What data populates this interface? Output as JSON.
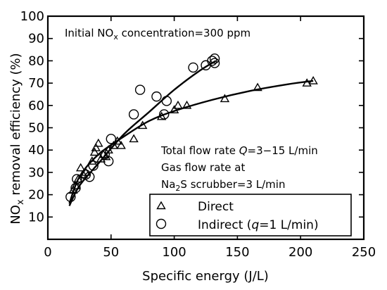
{
  "chart_data": {
    "type": "scatter",
    "title": "",
    "xlabel": "Specific energy (J/L)",
    "ylabel": {
      "pre": "NO",
      "sub": "x",
      "post": " removal efficiency (%)"
    },
    "xlim": [
      0,
      250
    ],
    "ylim": [
      0,
      100
    ],
    "xticks": [
      0,
      50,
      100,
      150,
      200,
      250
    ],
    "yticks": [
      10,
      20,
      30,
      40,
      50,
      60,
      70,
      80,
      90,
      100
    ],
    "xtick_labels": [
      "0",
      "50",
      "100",
      "150",
      "200",
      "250"
    ],
    "ytick_labels": [
      "10",
      "20",
      "30",
      "40",
      "50",
      "60",
      "70",
      "80",
      "90",
      "100"
    ],
    "grid": false,
    "annotations": {
      "initial": {
        "pre": "Initial NO",
        "sub": "x",
        "post": " concentration=300 ppm"
      },
      "flow_line1": {
        "pre": "Total flow rate ",
        "ital": "Q",
        "post": "=3−15 L/min"
      },
      "flow_line2": "Gas flow rate at",
      "flow_line3": {
        "pre": "Na",
        "sub": "2",
        "post": "S scrubber=3 L/min"
      }
    },
    "legend": {
      "placement": "lower-right",
      "direct": "Direct",
      "indirect": {
        "pre": "Indirect (",
        "ital": "q",
        "post": "=1 L/min)"
      }
    },
    "series": [
      {
        "name": "Direct",
        "marker": "triangle",
        "points": [
          [
            20,
            22
          ],
          [
            22,
            24
          ],
          [
            24,
            27
          ],
          [
            26,
            32
          ],
          [
            28,
            29
          ],
          [
            30,
            30
          ],
          [
            35,
            35
          ],
          [
            37,
            39
          ],
          [
            38,
            41
          ],
          [
            40,
            43
          ],
          [
            42,
            36
          ],
          [
            44,
            38
          ],
          [
            46,
            37
          ],
          [
            48,
            40
          ],
          [
            52,
            42
          ],
          [
            55,
            44
          ],
          [
            58,
            42
          ],
          [
            68,
            45
          ],
          [
            75,
            51
          ],
          [
            90,
            55
          ],
          [
            100,
            58
          ],
          [
            103,
            60
          ],
          [
            110,
            60
          ],
          [
            140,
            63
          ],
          [
            166,
            68
          ],
          [
            205,
            70
          ],
          [
            210,
            71
          ]
        ],
        "fit": [
          [
            17,
            16
          ],
          [
            25,
            28
          ],
          [
            40,
            38
          ],
          [
            60,
            46
          ],
          [
            80,
            53
          ],
          [
            100,
            57.5
          ],
          [
            130,
            62.5
          ],
          [
            160,
            66.5
          ],
          [
            190,
            69.5
          ],
          [
            210,
            71
          ]
        ]
      },
      {
        "name": "Indirect (q=1 L/min)",
        "marker": "circle",
        "points": [
          [
            18,
            19
          ],
          [
            22,
            23
          ],
          [
            23,
            27
          ],
          [
            30,
            29
          ],
          [
            33,
            28
          ],
          [
            36,
            33
          ],
          [
            45,
            38
          ],
          [
            48,
            35
          ],
          [
            50,
            45
          ],
          [
            68,
            56
          ],
          [
            73,
            67
          ],
          [
            86,
            64
          ],
          [
            92,
            56
          ],
          [
            94,
            62
          ],
          [
            115,
            77
          ],
          [
            125,
            78
          ],
          [
            130,
            80
          ],
          [
            132,
            81
          ],
          [
            132,
            79
          ]
        ],
        "fit": [
          [
            17,
            15
          ],
          [
            25,
            24
          ],
          [
            40,
            34
          ],
          [
            60,
            47
          ],
          [
            80,
            57
          ],
          [
            100,
            67
          ],
          [
            120,
            75.5
          ],
          [
            133,
            80
          ]
        ]
      }
    ]
  }
}
